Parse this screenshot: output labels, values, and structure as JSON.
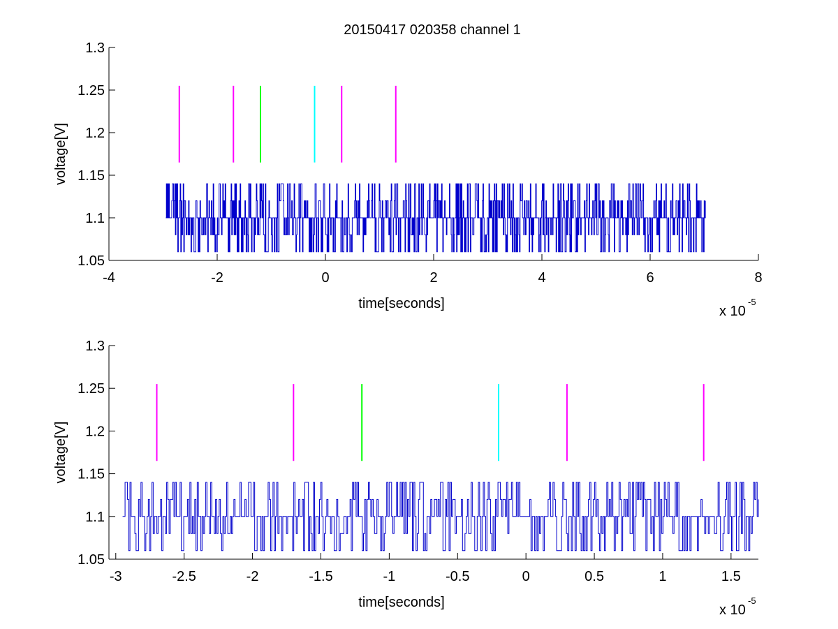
{
  "figure": {
    "title": "20150417 020358 channel 1"
  },
  "chart_data": [
    {
      "type": "line",
      "title": "20150417 020358 channel 1",
      "xlabel": "time[seconds]",
      "ylabel": "voltage[V]",
      "x_multiplier_label": "x 10",
      "x_multiplier_exponent": "-5",
      "xlim": [
        -4,
        8
      ],
      "ylim": [
        1.05,
        1.3
      ],
      "xticks": [
        "-4",
        "-2",
        "0",
        "2",
        "4",
        "6",
        "8"
      ],
      "yticks": [
        "1.05",
        "1.1",
        "1.15",
        "1.2",
        "1.25",
        "1.3"
      ],
      "xtick_values": [
        -4,
        -2,
        0,
        2,
        4,
        6,
        8
      ],
      "ytick_values": [
        1.05,
        1.1,
        1.15,
        1.2,
        1.25,
        1.3
      ],
      "grid": false,
      "signal": {
        "color": "#0000cc",
        "x_range": [
          -2.95,
          7.02
        ],
        "levels": [
          1.06,
          1.08,
          1.1,
          1.12,
          1.14
        ],
        "baseline": 1.1
      },
      "markers": [
        {
          "x": -2.7,
          "color": "#ff00ff",
          "y_range": [
            1.165,
            1.255
          ]
        },
        {
          "x": -1.7,
          "color": "#ff00ff",
          "y_range": [
            1.165,
            1.255
          ]
        },
        {
          "x": -1.2,
          "color": "#00ff00",
          "y_range": [
            1.165,
            1.255
          ]
        },
        {
          "x": -0.2,
          "color": "#00ffff",
          "y_range": [
            1.165,
            1.255
          ]
        },
        {
          "x": 0.3,
          "color": "#ff00ff",
          "y_range": [
            1.165,
            1.255
          ]
        },
        {
          "x": 1.3,
          "color": "#ff00ff",
          "y_range": [
            1.165,
            1.255
          ]
        }
      ]
    },
    {
      "type": "line",
      "title": "",
      "xlabel": "time[seconds]",
      "ylabel": "voltage[V]",
      "x_multiplier_label": "x 10",
      "x_multiplier_exponent": "-5",
      "xlim": [
        -3.05,
        1.7
      ],
      "ylim": [
        1.05,
        1.3
      ],
      "xticks": [
        "-3",
        "-2.5",
        "-2",
        "-1.5",
        "-1",
        "-0.5",
        "0",
        "0.5",
        "1",
        "1.5"
      ],
      "yticks": [
        "1.05",
        "1.1",
        "1.15",
        "1.2",
        "1.25",
        "1.3"
      ],
      "xtick_values": [
        -3,
        -2.5,
        -2,
        -1.5,
        -1,
        -0.5,
        0,
        0.5,
        1,
        1.5
      ],
      "ytick_values": [
        1.05,
        1.1,
        1.15,
        1.2,
        1.25,
        1.3
      ],
      "grid": false,
      "signal": {
        "color": "#0000cc",
        "x_range": [
          -2.95,
          1.7
        ],
        "levels": [
          1.06,
          1.08,
          1.1,
          1.12,
          1.14
        ],
        "baseline": 1.1
      },
      "markers": [
        {
          "x": -2.7,
          "color": "#ff00ff",
          "y_range": [
            1.165,
            1.255
          ]
        },
        {
          "x": -1.7,
          "color": "#ff00ff",
          "y_range": [
            1.165,
            1.255
          ]
        },
        {
          "x": -1.2,
          "color": "#00ff00",
          "y_range": [
            1.165,
            1.255
          ]
        },
        {
          "x": -0.2,
          "color": "#00ffff",
          "y_range": [
            1.165,
            1.255
          ]
        },
        {
          "x": 0.3,
          "color": "#ff00ff",
          "y_range": [
            1.165,
            1.255
          ]
        },
        {
          "x": 1.3,
          "color": "#ff00ff",
          "y_range": [
            1.165,
            1.255
          ]
        }
      ]
    }
  ]
}
